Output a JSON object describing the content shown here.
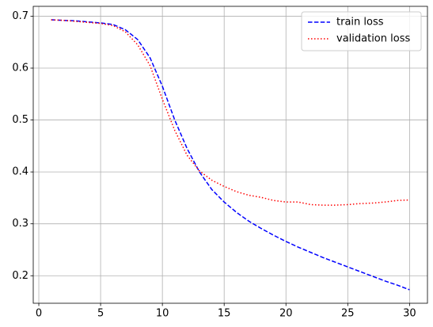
{
  "chart_data": {
    "type": "line",
    "x": [
      1,
      2,
      3,
      4,
      5,
      6,
      7,
      8,
      9,
      10,
      11,
      12,
      13,
      14,
      15,
      16,
      17,
      18,
      19,
      20,
      21,
      22,
      23,
      24,
      25,
      26,
      27,
      28,
      29,
      30
    ],
    "series": [
      {
        "name": "train loss",
        "color": "#0000ff",
        "linestyle": "dashed",
        "values": [
          0.693,
          0.692,
          0.691,
          0.689,
          0.687,
          0.684,
          0.674,
          0.655,
          0.62,
          0.565,
          0.5,
          0.445,
          0.4,
          0.366,
          0.342,
          0.322,
          0.305,
          0.291,
          0.278,
          0.266,
          0.255,
          0.245,
          0.235,
          0.226,
          0.217,
          0.208,
          0.199,
          0.19,
          0.182,
          0.173
        ]
      },
      {
        "name": "validation loss",
        "color": "#ff0000",
        "linestyle": "dotted",
        "values": [
          0.693,
          0.692,
          0.69,
          0.688,
          0.686,
          0.682,
          0.67,
          0.645,
          0.605,
          0.54,
          0.48,
          0.432,
          0.402,
          0.384,
          0.372,
          0.362,
          0.355,
          0.351,
          0.345,
          0.342,
          0.342,
          0.337,
          0.336,
          0.336,
          0.337,
          0.339,
          0.34,
          0.342,
          0.345,
          0.346
        ]
      }
    ],
    "xlim": [
      -0.45,
      31.45
    ],
    "xticks": [
      0,
      5,
      10,
      15,
      20,
      25,
      30
    ],
    "ylim": [
      0.147,
      0.719
    ],
    "yticks": [
      0.2,
      0.3,
      0.4,
      0.5,
      0.6,
      0.7
    ],
    "grid": true,
    "legend": "upper right"
  }
}
